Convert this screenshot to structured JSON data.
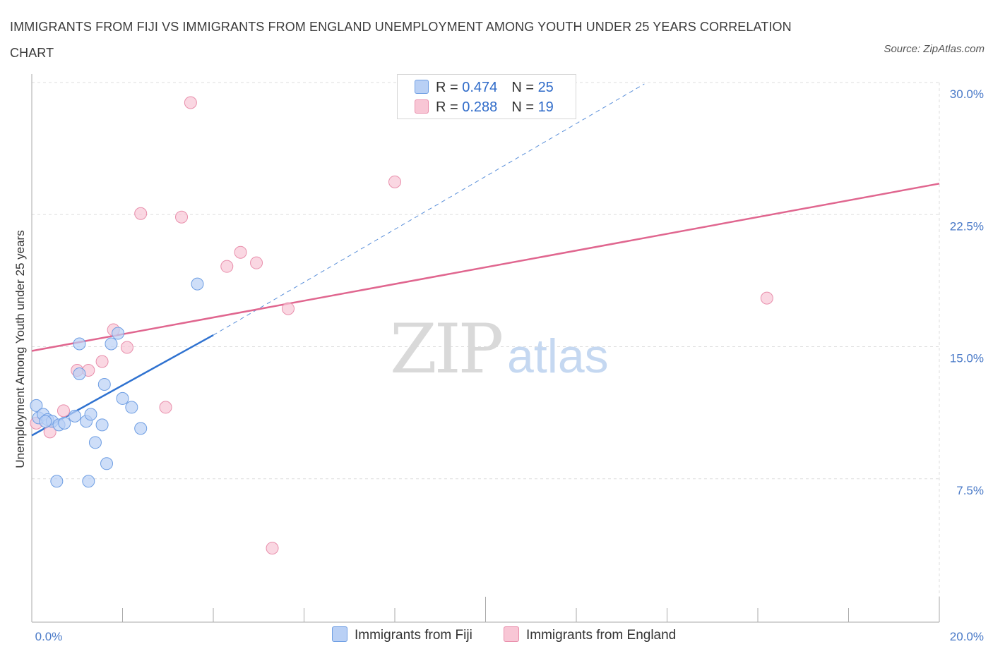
{
  "title": "IMMIGRANTS FROM FIJI VS IMMIGRANTS FROM ENGLAND UNEMPLOYMENT AMONG YOUTH UNDER 25 YEARS CORRELATION CHART",
  "source": "Source: ZipAtlas.com",
  "watermark": {
    "zip": "ZIP",
    "atlas": "atlas"
  },
  "legend": {
    "fiji": {
      "r_label": "R = ",
      "r_value": "0.474",
      "n_label": "N = ",
      "n_value": "25"
    },
    "england": {
      "r_label": "R = ",
      "r_value": "0.288",
      "n_label": "N = ",
      "n_value": "19"
    }
  },
  "bottom_legend": {
    "fiji": "Immigrants from Fiji",
    "england": "Immigrants from England"
  },
  "colors": {
    "fiji_fill": "#b9d0f5",
    "fiji_stroke": "#6e9ee3",
    "fiji_line": "#2f72d0",
    "england_fill": "#f8c6d5",
    "england_stroke": "#e98fac",
    "england_line": "#e0668f",
    "tick": "#4a7ac8",
    "grid": "#dddddd"
  },
  "chart_data": {
    "type": "scatter",
    "title": "IMMIGRANTS FROM FIJI VS IMMIGRANTS FROM ENGLAND UNEMPLOYMENT AMONG YOUTH UNDER 25 YEARS CORRELATION CHART",
    "xlabel": "",
    "ylabel": "Unemployment Among Youth under 25 years",
    "xlim": [
      0,
      20
    ],
    "ylim": [
      0,
      30
    ],
    "x_tick_labels": [
      "0.0%",
      "20.0%"
    ],
    "y_ticks": [
      7.5,
      15.0,
      22.5,
      30.0
    ],
    "y_tick_labels": [
      "7.5%",
      "15.0%",
      "22.5%",
      "30.0%"
    ],
    "series": [
      {
        "name": "Immigrants from Fiji",
        "points": [
          [
            0.1,
            12.3
          ],
          [
            0.15,
            11.6
          ],
          [
            0.25,
            11.8
          ],
          [
            0.35,
            11.5
          ],
          [
            0.45,
            11.4
          ],
          [
            0.6,
            11.2
          ],
          [
            0.72,
            11.3
          ],
          [
            0.55,
            8.0
          ],
          [
            0.95,
            11.7
          ],
          [
            1.05,
            15.8
          ],
          [
            1.05,
            14.1
          ],
          [
            1.2,
            11.4
          ],
          [
            1.3,
            11.8
          ],
          [
            1.4,
            10.2
          ],
          [
            1.55,
            11.2
          ],
          [
            1.6,
            13.5
          ],
          [
            1.65,
            9.0
          ],
          [
            1.75,
            15.8
          ],
          [
            1.9,
            16.4
          ],
          [
            2.0,
            12.7
          ],
          [
            2.2,
            12.2
          ],
          [
            2.4,
            11.0
          ],
          [
            1.25,
            8.0
          ],
          [
            3.65,
            19.2
          ],
          [
            0.3,
            11.4
          ]
        ],
        "trend": {
          "x0": 0.0,
          "y0": 10.6,
          "x1": 4.0,
          "y1": 16.3
        },
        "trend_extension": {
          "x0": 4.0,
          "y0": 16.3,
          "x1": 13.5,
          "y1": 30.0
        }
      },
      {
        "name": "Immigrants from England",
        "points": [
          [
            0.1,
            11.3
          ],
          [
            0.4,
            10.8
          ],
          [
            0.7,
            12.0
          ],
          [
            1.0,
            14.3
          ],
          [
            1.25,
            14.3
          ],
          [
            1.55,
            14.8
          ],
          [
            1.8,
            16.6
          ],
          [
            2.1,
            15.6
          ],
          [
            2.4,
            23.2
          ],
          [
            2.95,
            12.2
          ],
          [
            3.3,
            23.0
          ],
          [
            3.5,
            29.5
          ],
          [
            4.3,
            20.2
          ],
          [
            4.6,
            21.0
          ],
          [
            4.95,
            20.4
          ],
          [
            5.3,
            4.2
          ],
          [
            5.65,
            17.8
          ],
          [
            8.0,
            25.0
          ],
          [
            16.2,
            18.4
          ]
        ],
        "trend": {
          "x0": 0.0,
          "y0": 15.4,
          "x1": 20.0,
          "y1": 24.9
        }
      }
    ]
  }
}
